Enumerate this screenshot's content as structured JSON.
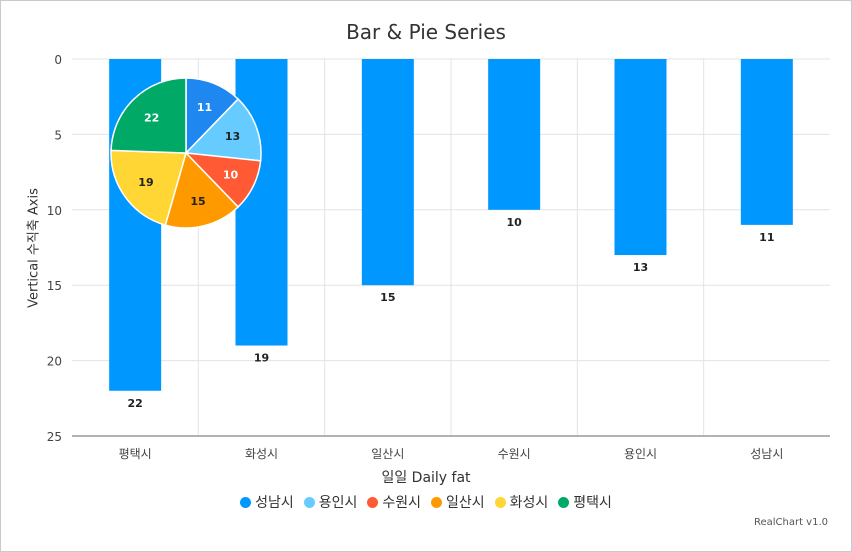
{
  "title": "Bar & Pie Series",
  "credits": "RealChart v1.0",
  "chart_data": {
    "type": "bar",
    "title": "Bar & Pie Series",
    "xlabel": "일일 Daily fat",
    "ylabel": "Vertical 수직축 Axis",
    "y_reversed": true,
    "ylim": [
      0,
      25
    ],
    "yticks": [
      0,
      5,
      10,
      15,
      20,
      25
    ],
    "grid": true,
    "legend_position": "bottom",
    "categories": [
      "평택시",
      "화성시",
      "일산시",
      "수원시",
      "용인시",
      "성남시"
    ],
    "series": [
      {
        "type": "bar",
        "color": "#0098ff",
        "values": [
          22,
          19,
          15,
          10,
          13,
          11
        ]
      },
      {
        "type": "pie",
        "labels": [
          "성남시",
          "용인시",
          "수원시",
          "일산시",
          "화성시",
          "평택시"
        ],
        "values": [
          11,
          13,
          10,
          15,
          19,
          22
        ],
        "colors": [
          "#1e88f0",
          "#66ccff",
          "#ff5a33",
          "#ff9900",
          "#ffd633",
          "#00aa66"
        ]
      }
    ]
  },
  "legend": [
    {
      "label": "성남시",
      "color": "#0098ff"
    },
    {
      "label": "용인시",
      "color": "#66ccff"
    },
    {
      "label": "수원시",
      "color": "#ff5a33"
    },
    {
      "label": "일산시",
      "color": "#ff9900"
    },
    {
      "label": "화성시",
      "color": "#ffd633"
    },
    {
      "label": "평택시",
      "color": "#00aa66"
    }
  ]
}
